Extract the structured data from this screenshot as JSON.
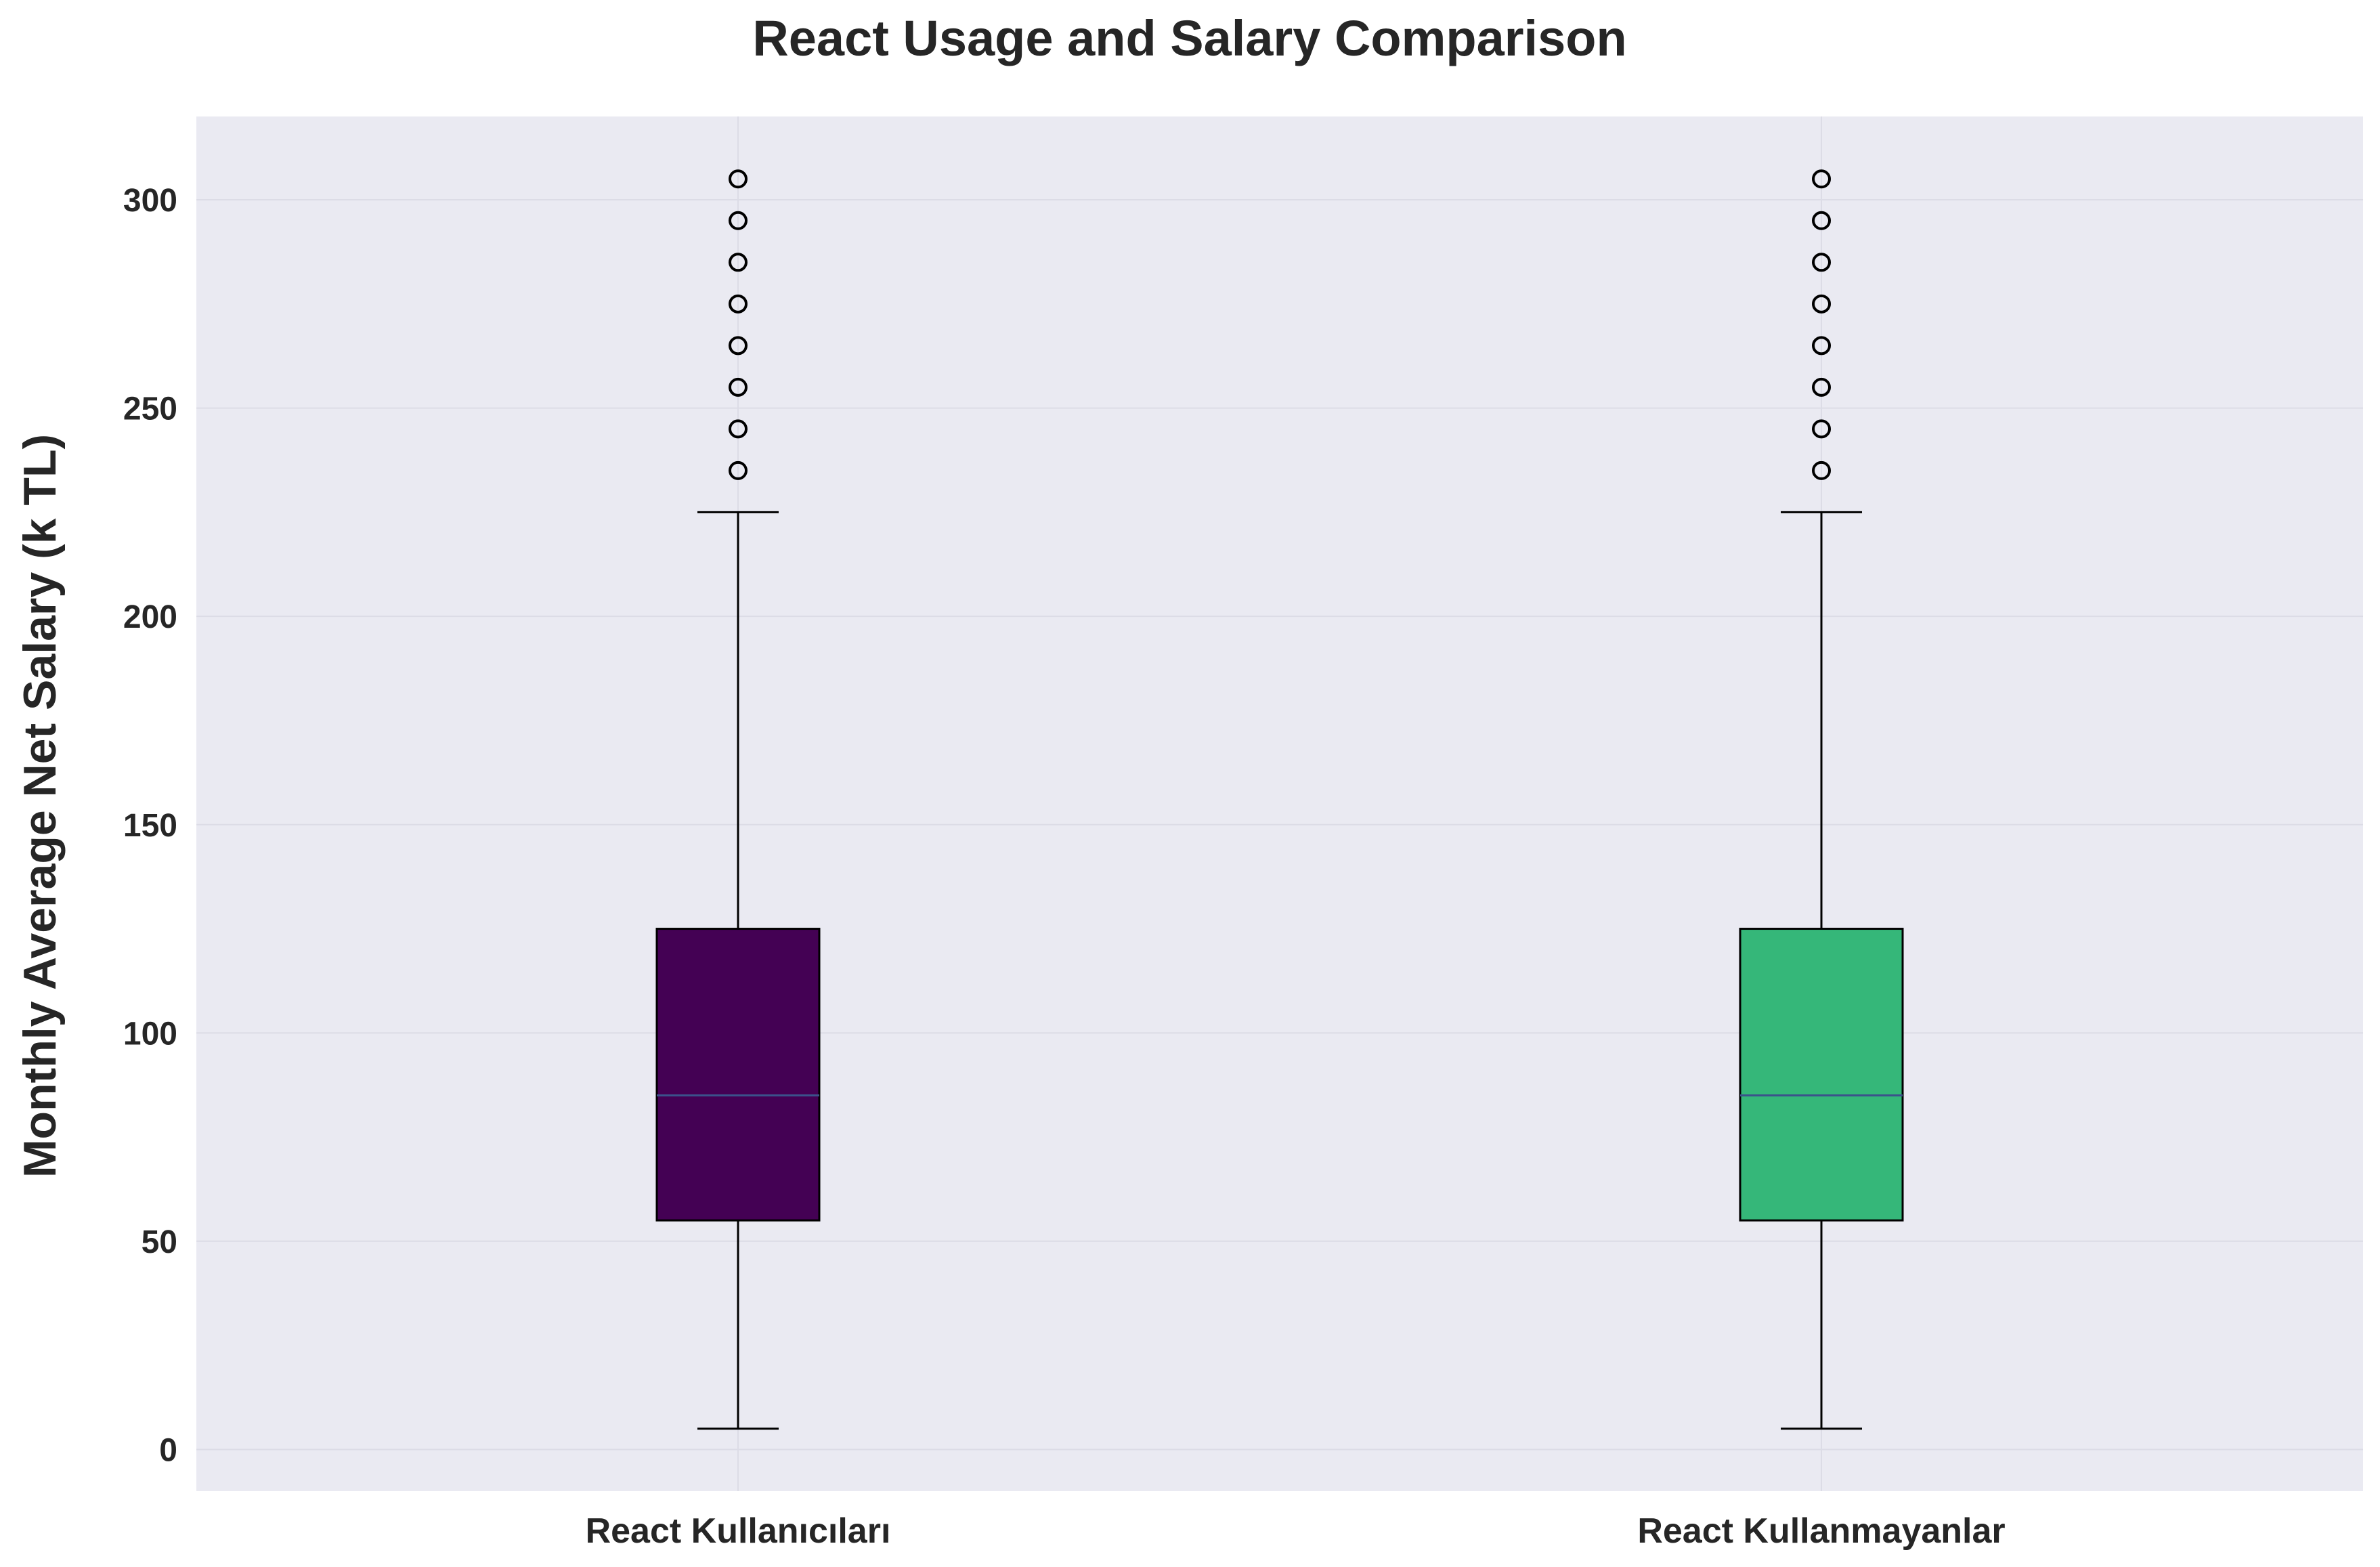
{
  "chart_data": {
    "type": "boxplot",
    "title": "React Usage and Salary Comparison",
    "xlabel": "",
    "ylabel": "Monthly Average Net Salary (k TL)",
    "ylim": [
      -10,
      320
    ],
    "yticks": [
      0,
      50,
      100,
      150,
      200,
      250,
      300
    ],
    "grid": true,
    "legend": "none",
    "colors": {
      "plot_background": "#eaeaf2",
      "grid": "#dcdce6",
      "median": "#3b528b",
      "outline": "#000000"
    },
    "series": [
      {
        "category": "React Kullanıcıları",
        "color": "#440154",
        "whisker_low": 5,
        "q1": 55,
        "median": 85,
        "q3": 125,
        "whisker_high": 225,
        "outliers": [
          235,
          245,
          255,
          265,
          275,
          285,
          295,
          305
        ]
      },
      {
        "category": "React Kullanmayanlar",
        "color": "#35b779",
        "whisker_low": 5,
        "q1": 55,
        "median": 85,
        "q3": 125,
        "whisker_high": 225,
        "outliers": [
          235,
          245,
          255,
          265,
          275,
          285,
          295,
          305
        ]
      }
    ]
  }
}
